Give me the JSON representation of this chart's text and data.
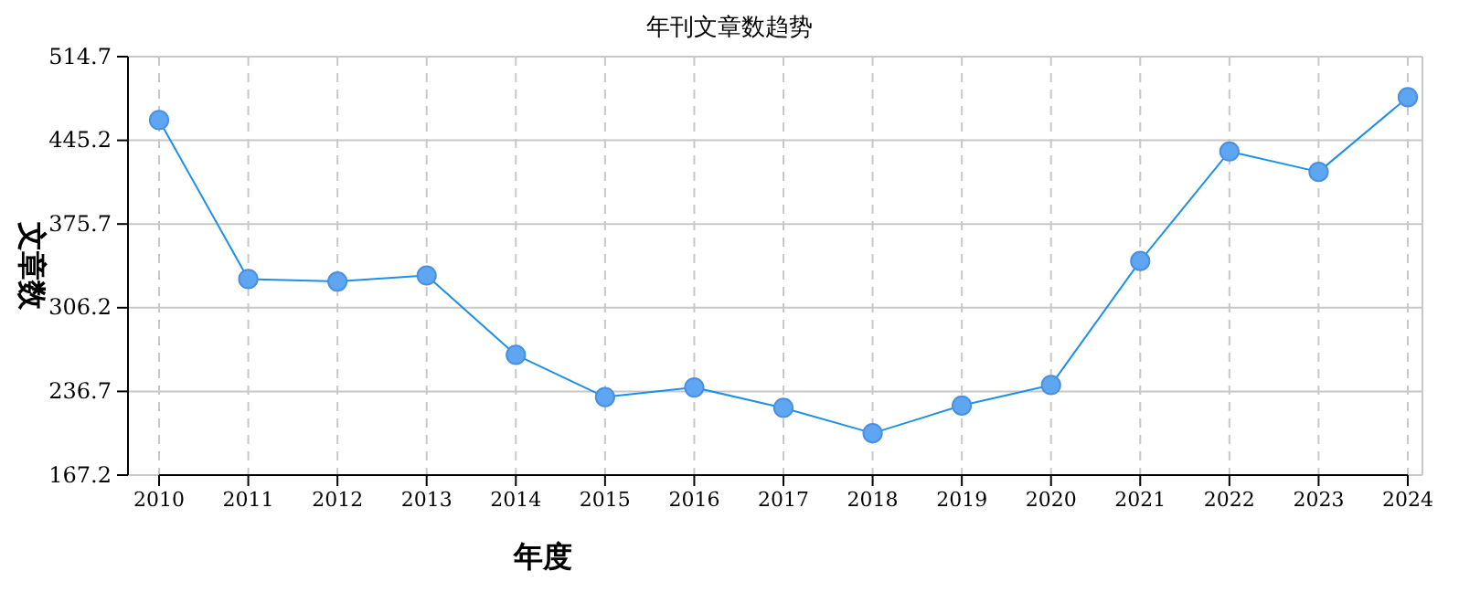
{
  "chart_data": {
    "type": "line",
    "title": "年刊文章数趋势",
    "xlabel": "年度",
    "ylabel": "文章数",
    "categories": [
      "2010",
      "2011",
      "2012",
      "2013",
      "2014",
      "2015",
      "2016",
      "2017",
      "2018",
      "2019",
      "2020",
      "2021",
      "2022",
      "2023",
      "2024"
    ],
    "series": [
      {
        "color": "#1e90e8",
        "values": [
          462,
          330,
          328,
          333,
          267,
          232,
          240,
          223,
          202,
          225,
          242,
          345,
          436,
          419,
          481
        ]
      }
    ],
    "ylim": [
      167.2,
      514.7
    ],
    "yticks": [
      167.2,
      236.7,
      306.2,
      375.7,
      445.2,
      514.7
    ],
    "grid": true,
    "marker": "circle",
    "line_style": "solid"
  }
}
